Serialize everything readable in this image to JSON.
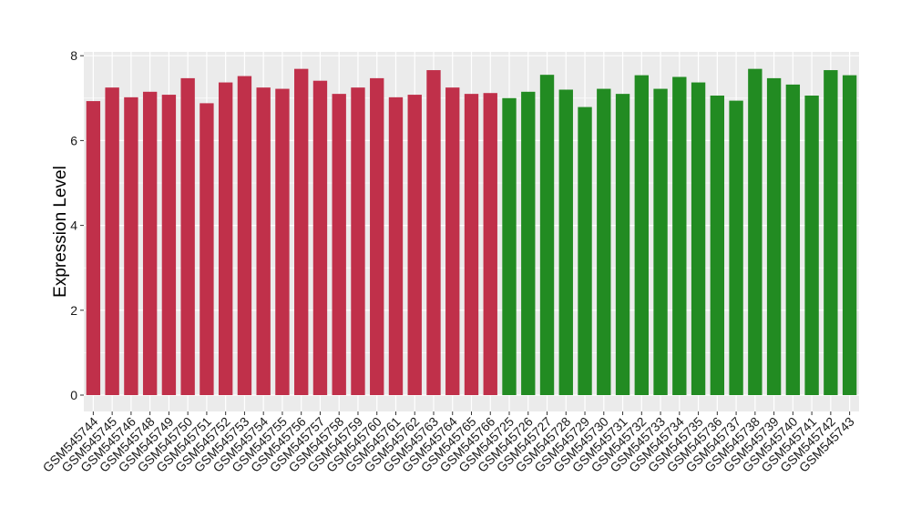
{
  "chart_data": {
    "type": "bar",
    "title": "",
    "xlabel": "",
    "ylabel": "Expression Level",
    "ylim": [
      0,
      8
    ],
    "yticks": [
      "0",
      "2",
      "4",
      "6",
      "8"
    ],
    "grid": true,
    "legend": "none",
    "categories": [
      "GSM545744",
      "GSM545745",
      "GSM545746",
      "GSM545748",
      "GSM545749",
      "GSM545750",
      "GSM545751",
      "GSM545752",
      "GSM545753",
      "GSM545754",
      "GSM545755",
      "GSM545756",
      "GSM545757",
      "GSM545758",
      "GSM545759",
      "GSM545760",
      "GSM545761",
      "GSM545762",
      "GSM545763",
      "GSM545764",
      "GSM545765",
      "GSM545766",
      "GSM545725",
      "GSM545726",
      "GSM545727",
      "GSM545728",
      "GSM545729",
      "GSM545730",
      "GSM545731",
      "GSM545732",
      "GSM545733",
      "GSM545734",
      "GSM545735",
      "GSM545736",
      "GSM545737",
      "GSM545738",
      "GSM545739",
      "GSM545740",
      "GSM545741",
      "GSM545742",
      "GSM545743"
    ],
    "values": [
      6.93,
      7.25,
      7.02,
      7.15,
      7.08,
      7.47,
      6.88,
      7.37,
      7.52,
      7.25,
      7.22,
      7.69,
      7.41,
      7.1,
      7.25,
      7.47,
      7.02,
      7.08,
      7.66,
      7.25,
      7.1,
      7.12,
      7.0,
      7.15,
      7.55,
      7.2,
      6.79,
      7.22,
      7.1,
      7.54,
      7.22,
      7.5,
      7.37,
      7.06,
      6.94,
      7.69,
      7.47,
      7.32,
      7.06,
      7.66,
      7.54
    ],
    "groups": [
      0,
      0,
      0,
      0,
      0,
      0,
      0,
      0,
      0,
      0,
      0,
      0,
      0,
      0,
      0,
      0,
      0,
      0,
      0,
      0,
      0,
      0,
      1,
      1,
      1,
      1,
      1,
      1,
      1,
      1,
      1,
      1,
      1,
      1,
      1,
      1,
      1,
      1,
      1,
      1,
      1
    ],
    "colors": [
      "#c0304a",
      "#228b22"
    ],
    "panel_color": "#ebebeb",
    "grid_color": "#ffffff"
  }
}
